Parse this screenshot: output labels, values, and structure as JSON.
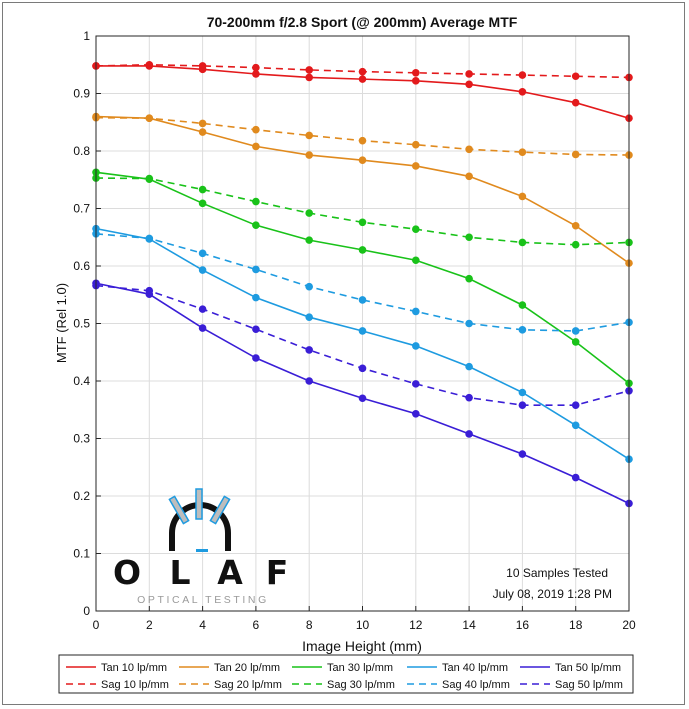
{
  "chart_data": {
    "type": "line",
    "title": "70-200mm f/2.8 Sport (@ 200mm) Average MTF",
    "xlabel": "Image Height (mm)",
    "ylabel": "MTF (Rel 1.0)",
    "x": [
      0,
      2,
      4,
      6,
      8,
      10,
      12,
      14,
      16,
      18,
      20
    ],
    "xlim": [
      0,
      20
    ],
    "ylim": [
      0,
      1
    ],
    "xticks": [
      0,
      2,
      4,
      6,
      8,
      10,
      12,
      14,
      16,
      18,
      20
    ],
    "yticks": [
      0,
      0.1,
      0.2,
      0.3,
      0.4,
      0.5,
      0.6,
      0.7,
      0.8,
      0.9,
      1
    ],
    "ytick_labels": [
      "0",
      "0.1",
      "0.2",
      "0.3",
      "0.4",
      "0.5",
      "0.6",
      "0.7",
      "0.8",
      "0.9",
      "1"
    ],
    "grid": true,
    "legend_position": "bottom",
    "series": [
      {
        "name": "Tan 10 lp/mm",
        "color": "#e31a1c",
        "style": "solid",
        "values": [
          0.948,
          0.948,
          0.942,
          0.934,
          0.928,
          0.925,
          0.922,
          0.916,
          0.903,
          0.884,
          0.857
        ]
      },
      {
        "name": "Sag 10 lp/mm",
        "color": "#e31a1c",
        "style": "dashed",
        "values": [
          0.948,
          0.95,
          0.948,
          0.945,
          0.941,
          0.938,
          0.936,
          0.934,
          0.932,
          0.93,
          0.928
        ]
      },
      {
        "name": "Tan 20 lp/mm",
        "color": "#e08a1e",
        "style": "solid",
        "values": [
          0.86,
          0.857,
          0.833,
          0.808,
          0.793,
          0.784,
          0.774,
          0.756,
          0.721,
          0.67,
          0.605
        ]
      },
      {
        "name": "Sag 20 lp/mm",
        "color": "#e08a1e",
        "style": "dashed",
        "values": [
          0.858,
          0.857,
          0.848,
          0.837,
          0.827,
          0.818,
          0.811,
          0.803,
          0.798,
          0.794,
          0.793
        ]
      },
      {
        "name": "Tan 30 lp/mm",
        "color": "#19c219",
        "style": "solid",
        "values": [
          0.763,
          0.751,
          0.709,
          0.671,
          0.645,
          0.628,
          0.61,
          0.578,
          0.532,
          0.468,
          0.396
        ]
      },
      {
        "name": "Sag 30 lp/mm",
        "color": "#19c219",
        "style": "dashed",
        "values": [
          0.753,
          0.752,
          0.733,
          0.712,
          0.692,
          0.676,
          0.664,
          0.65,
          0.641,
          0.637,
          0.641
        ]
      },
      {
        "name": "Tan 40 lp/mm",
        "color": "#1e9be0",
        "style": "solid",
        "values": [
          0.665,
          0.647,
          0.593,
          0.545,
          0.511,
          0.487,
          0.461,
          0.425,
          0.38,
          0.323,
          0.264
        ]
      },
      {
        "name": "Sag 40 lp/mm",
        "color": "#1e9be0",
        "style": "dashed",
        "values": [
          0.656,
          0.648,
          0.622,
          0.594,
          0.564,
          0.541,
          0.521,
          0.5,
          0.489,
          0.487,
          0.502
        ]
      },
      {
        "name": "Tan 50 lp/mm",
        "color": "#3a1ed6",
        "style": "solid",
        "values": [
          0.57,
          0.551,
          0.492,
          0.44,
          0.4,
          0.37,
          0.343,
          0.308,
          0.273,
          0.232,
          0.187
        ]
      },
      {
        "name": "Sag 50 lp/mm",
        "color": "#3a1ed6",
        "style": "dashed",
        "values": [
          0.566,
          0.557,
          0.525,
          0.49,
          0.454,
          0.422,
          0.395,
          0.371,
          0.358,
          0.358,
          0.383
        ]
      }
    ]
  },
  "annotations": {
    "samples": "10 Samples Tested",
    "date": "July 08, 2019  1:28 PM"
  },
  "logo": {
    "name": "OLAF",
    "letters": [
      "O",
      "L",
      "A",
      "F"
    ],
    "subtitle": "OPTICAL TESTING"
  }
}
